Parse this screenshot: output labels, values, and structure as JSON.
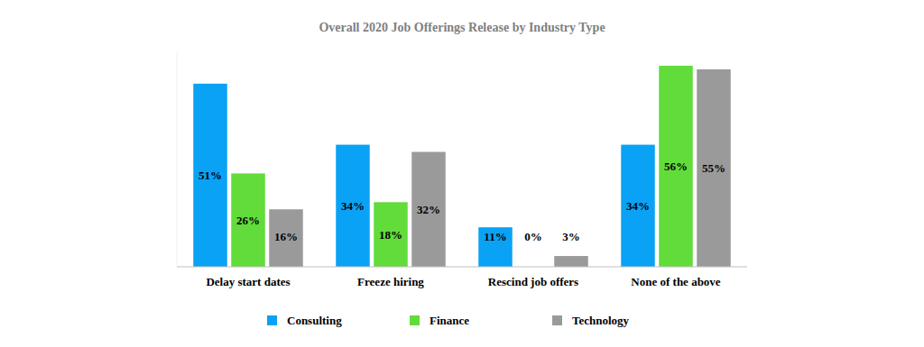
{
  "chart_data": {
    "type": "bar",
    "title": "Overall 2020 Job Offerings Release by Industry Type",
    "categories": [
      "Delay start dates",
      "Freeze hiring",
      "Rescind job offers",
      "None of the above"
    ],
    "series": [
      {
        "name": "Consulting",
        "color": "#0aa2f5",
        "values": [
          51,
          34,
          11,
          34
        ],
        "value_labels": [
          "51%",
          "34%",
          "11%",
          "34%"
        ]
      },
      {
        "name": "Finance",
        "color": "#62dc3a",
        "values": [
          26,
          18,
          0,
          56
        ],
        "value_labels": [
          "26%",
          "18%",
          "0%",
          "56%"
        ]
      },
      {
        "name": "Technology",
        "color": "#9a9a9a",
        "values": [
          16,
          32,
          3,
          55
        ],
        "value_labels": [
          "16%",
          "32%",
          "3%",
          "55%"
        ]
      }
    ],
    "ylim": [
      0,
      60
    ],
    "tick_labels": false,
    "data_labels": true,
    "legend": "bottom",
    "grid": false
  }
}
